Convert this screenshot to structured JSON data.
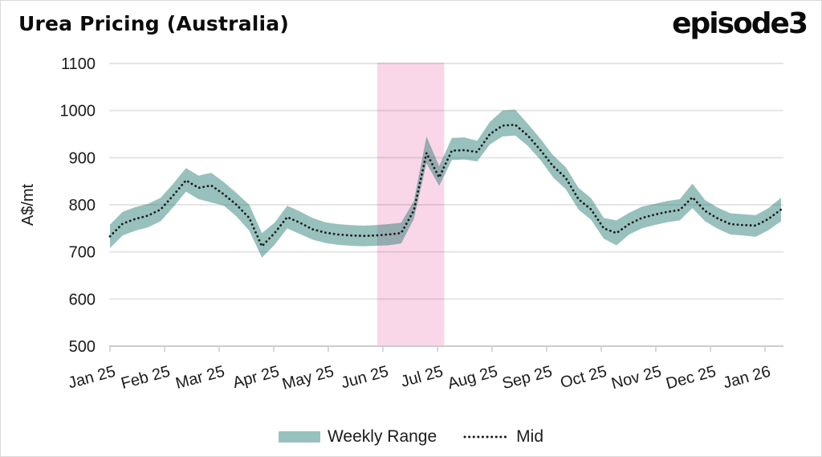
{
  "header": {
    "title": "Urea Pricing (Australia)",
    "logo": "episode3"
  },
  "legend": {
    "items": [
      {
        "label": "Weekly Range",
        "type": "band"
      },
      {
        "label": "Mid",
        "type": "dotted-line"
      }
    ]
  },
  "colors": {
    "band_teal": "#98C1BD",
    "band_teal_fill": "rgba(26,117,108,0.45)",
    "highlight_pink": "#FAD7E8",
    "mid_line": "#1B1B1B",
    "grid_line": "rgba(0,0,0,0.10)",
    "axis_line": "#CCCCCC",
    "tick_text": "#1A1A1A"
  },
  "chart_data": {
    "type": "area",
    "subtype": "band-with-mid-line",
    "title": "Urea Pricing (Australia)",
    "xlabel": "",
    "ylabel": "A$/mt",
    "ylim": [
      500,
      1100
    ],
    "yticks": [
      500,
      600,
      700,
      800,
      900,
      1000,
      1100
    ],
    "x_tick_labels": [
      "Jan 25",
      "Feb 25",
      "Mar 25",
      "Apr 25",
      "May 25",
      "Jun 25",
      "Jul 25",
      "Aug 25",
      "Sep 25",
      "Oct 25",
      "Nov 25",
      "Dec 25",
      "Jan 26"
    ],
    "x_resolution": "weekly",
    "grid": "horizontal-only",
    "legend_position": "bottom-center",
    "highlight_region": {
      "from_week": 21.1,
      "to_week": 26.4,
      "color": "#FAD7E8"
    },
    "series": [
      {
        "name": "Weekly Range",
        "type": "band",
        "low": [
          708,
          735,
          745,
          752,
          765,
          795,
          828,
          812,
          805,
          798,
          775,
          745,
          688,
          715,
          750,
          738,
          726,
          719,
          715,
          713,
          712,
          713,
          714,
          718,
          770,
          888,
          840,
          895,
          896,
          892,
          928,
          945,
          947,
          925,
          895,
          858,
          833,
          790,
          768,
          728,
          714,
          737,
          750,
          757,
          763,
          767,
          793,
          765,
          749,
          737,
          735,
          732,
          746,
          765
        ],
        "high": [
          758,
          785,
          795,
          802,
          815,
          845,
          878,
          862,
          868,
          848,
          825,
          800,
          740,
          762,
          798,
          786,
          772,
          763,
          759,
          757,
          756,
          757,
          759,
          762,
          808,
          945,
          882,
          942,
          943,
          936,
          976,
          1000,
          1002,
          972,
          940,
          905,
          880,
          836,
          814,
          772,
          767,
          783,
          796,
          802,
          808,
          812,
          845,
          810,
          794,
          782,
          780,
          778,
          793,
          815
        ]
      },
      {
        "name": "Mid",
        "type": "dotted-line",
        "values": [
          733,
          760,
          770,
          777,
          790,
          820,
          852,
          836,
          841,
          822,
          800,
          772,
          712,
          740,
          774,
          762,
          748,
          741,
          737,
          735,
          734,
          735,
          737,
          740,
          788,
          910,
          858,
          915,
          916,
          912,
          950,
          968,
          970,
          947,
          916,
          882,
          857,
          812,
          790,
          750,
          740,
          759,
          772,
          779,
          785,
          789,
          816,
          787,
          771,
          759,
          757,
          756,
          770,
          790
        ]
      }
    ]
  }
}
